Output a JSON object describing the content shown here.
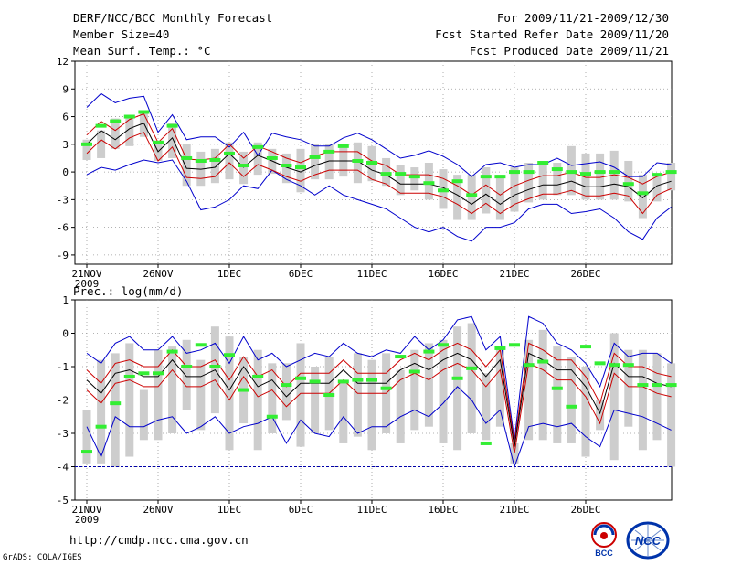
{
  "header": {
    "title": "DERF/NCC/BCC Monthly Forecast",
    "member_size": "Member Size=40",
    "variable": "Mean Surf. Temp.: °C",
    "period": "For 2009/11/21-2009/12/30",
    "fcst_started": "Fcst Started Refer Date 2009/11/20",
    "fcst_produced": "Fcst Produced Date 2009/11/21"
  },
  "footer": {
    "url": "http://cmdp.ncc.cma.gov.cn",
    "credit": "GrADS: COLA/IGES",
    "logo_left": "BCC",
    "logo_right": "NCC"
  },
  "colors": {
    "max_line": "#0000cc",
    "min_line": "#0000cc",
    "upper_line": "#cc0000",
    "lower_line": "#cc0000",
    "mean_line": "#000000",
    "box": "#cdcdcd",
    "marker": "#33ee33",
    "zero_line_precip": "#0000aa"
  },
  "chart_data": [
    {
      "type": "box",
      "title": "Mean Surf. Temp.: °C",
      "xlabel": "",
      "ylabel": "°C",
      "x_first_day": "2009-11-21",
      "x_tick_labels": [
        "21NOV",
        "26NOV",
        "1DEC",
        "6DEC",
        "11DEC",
        "16DEC",
        "21DEC",
        "26DEC"
      ],
      "x_year_label": "2009",
      "ylim": [
        -10,
        12
      ],
      "y_ticks": [
        -9,
        -6,
        -3,
        0,
        3,
        6,
        9,
        12
      ],
      "grid": true,
      "series": [
        {
          "name": "max",
          "values": [
            -0.3,
            0.5,
            0.2,
            0.8,
            1.3,
            1.0,
            1.3,
            -1.0,
            -4.1,
            -3.8,
            -3.0,
            -1.5,
            -1.8,
            0.2,
            -0.8,
            -1.5,
            -2.5,
            -1.5,
            -2.5,
            -3.0,
            -3.5,
            -4.0,
            -5.0,
            -6.0,
            -6.5,
            -6.0,
            -7.0,
            -7.5,
            -6.0,
            -6.0,
            -5.5,
            -4.0,
            -3.5,
            -3.5,
            -4.5,
            -4.3,
            -4.0,
            -5.0,
            -6.5,
            -7.3,
            -5.0,
            -3.8
          ]
        },
        {
          "name": "min",
          "values": [
            7.0,
            8.5,
            7.5,
            8.0,
            8.2,
            4.3,
            6.2,
            3.5,
            3.8,
            3.8,
            2.7,
            4.3,
            1.8,
            4.2,
            3.8,
            3.5,
            2.8,
            2.8,
            3.7,
            4.2,
            3.5,
            2.5,
            1.5,
            1.8,
            2.3,
            1.7,
            0.8,
            -0.5,
            0.8,
            1.0,
            0.5,
            0.8,
            0.8,
            1.5,
            0.7,
            0.9,
            1.1,
            0.5,
            -0.5,
            -0.5,
            1.0,
            0.8
          ]
        },
        {
          "name": "upper",
          "values": [
            4.0,
            5.5,
            4.5,
            5.7,
            6.3,
            3.2,
            4.7,
            1.4,
            1.3,
            1.5,
            3.0,
            1.5,
            2.8,
            2.2,
            1.5,
            1.0,
            1.7,
            2.2,
            2.2,
            2.2,
            1.2,
            0.7,
            -0.3,
            -0.3,
            -0.3,
            -0.7,
            -1.5,
            -2.5,
            -1.4,
            -2.5,
            -1.5,
            -0.9,
            -0.4,
            -0.4,
            0.0,
            -0.6,
            -0.6,
            -0.3,
            -0.6,
            -1.3,
            -0.5,
            0.0
          ]
        },
        {
          "name": "mean",
          "values": [
            3.0,
            4.5,
            3.5,
            4.7,
            5.3,
            2.2,
            3.7,
            0.4,
            0.3,
            0.5,
            2.0,
            0.5,
            1.8,
            1.2,
            0.5,
            0.0,
            0.7,
            1.2,
            1.2,
            1.2,
            0.2,
            -0.3,
            -1.3,
            -1.3,
            -1.3,
            -1.7,
            -2.5,
            -3.5,
            -2.4,
            -3.5,
            -2.5,
            -1.9,
            -1.4,
            -1.4,
            -1.0,
            -1.6,
            -1.6,
            -1.3,
            -1.6,
            -2.8,
            -1.5,
            -1.0
          ]
        },
        {
          "name": "lower",
          "values": [
            2.0,
            3.5,
            2.5,
            3.7,
            4.3,
            1.2,
            2.7,
            -0.6,
            -0.7,
            -0.5,
            1.0,
            -0.5,
            0.8,
            0.2,
            -0.5,
            -1.0,
            -0.3,
            0.2,
            0.2,
            0.2,
            -0.8,
            -1.3,
            -2.3,
            -2.3,
            -2.3,
            -2.7,
            -3.5,
            -4.5,
            -3.4,
            -4.5,
            -3.5,
            -2.9,
            -2.4,
            -2.4,
            -2.0,
            -2.6,
            -2.6,
            -2.3,
            -2.6,
            -4.5,
            -2.5,
            -1.8
          ]
        }
      ],
      "boxes": {
        "low": [
          1.3,
          1.5,
          2.5,
          2.8,
          3.8,
          1.2,
          1.5,
          -1.5,
          -1.5,
          -1.2,
          -0.8,
          -1.3,
          -0.3,
          -0.2,
          -1.2,
          -2.2,
          -0.8,
          -0.8,
          -0.5,
          -1.2,
          -1.0,
          -1.5,
          -2.5,
          -2.0,
          -3.0,
          -4.0,
          -5.2,
          -5.2,
          -4.5,
          -5.2,
          -4.3,
          -3.3,
          -3.0,
          -2.5,
          -2.5,
          -3.0,
          -3.0,
          -3.0,
          -3.2,
          -5.0,
          -3.2,
          -2.0
        ],
        "high": [
          3.5,
          4.5,
          5.8,
          6.2,
          6.3,
          3.3,
          5.3,
          3.0,
          2.2,
          2.5,
          3.2,
          2.2,
          3.2,
          2.5,
          2.0,
          2.5,
          3.0,
          3.0,
          2.8,
          3.2,
          2.8,
          1.5,
          0.8,
          0.5,
          1.0,
          0.3,
          -0.3,
          -0.3,
          0.5,
          -0.3,
          0.5,
          1.0,
          1.0,
          1.0,
          2.8,
          2.0,
          2.0,
          2.3,
          1.2,
          -0.3,
          -0.5,
          1.0
        ],
        "marker": [
          3.0,
          5.0,
          5.5,
          6.0,
          6.5,
          3.2,
          5.0,
          1.5,
          1.2,
          1.3,
          2.0,
          0.7,
          2.7,
          1.5,
          0.7,
          0.5,
          1.6,
          2.2,
          2.8,
          1.2,
          1.0,
          -0.2,
          -0.2,
          -0.5,
          -1.2,
          -2.0,
          -1.0,
          -2.5,
          -0.5,
          -0.5,
          0.0,
          0.0,
          1.0,
          0.3,
          0.0,
          -0.2,
          0.0,
          0.0,
          -1.3,
          -2.3,
          -0.3,
          0.0
        ]
      }
    },
    {
      "type": "box",
      "title": "Prec.: log(mm/d)",
      "xlabel": "",
      "ylabel": "log(mm/d)",
      "x_first_day": "2009-11-21",
      "x_tick_labels": [
        "21NOV",
        "26NOV",
        "1DEC",
        "6DEC",
        "11DEC",
        "16DEC",
        "21DEC",
        "26DEC"
      ],
      "x_year_label": "2009",
      "ylim": [
        -5,
        1
      ],
      "y_ticks": [
        -5,
        -4,
        -3,
        -2,
        -1,
        0,
        1
      ],
      "grid": true,
      "reference_line": -4,
      "series": [
        {
          "name": "max",
          "values": [
            -0.6,
            -0.9,
            -0.3,
            -0.1,
            -0.5,
            -0.5,
            -0.1,
            -0.6,
            -0.5,
            -0.3,
            -0.9,
            -0.1,
            -0.8,
            -0.6,
            -1.0,
            -0.8,
            -0.6,
            -0.7,
            -0.3,
            -0.6,
            -0.7,
            -0.5,
            -0.6,
            -0.1,
            -0.5,
            -0.2,
            0.4,
            0.5,
            -0.5,
            -0.1,
            -3.2,
            0.5,
            0.3,
            -0.3,
            -0.5,
            -0.9,
            -1.6,
            -0.3,
            -0.7,
            -0.6,
            -0.6,
            -0.9
          ]
        },
        {
          "name": "upper",
          "values": [
            -1.1,
            -1.5,
            -0.9,
            -0.8,
            -1.0,
            -1.0,
            -0.5,
            -1.0,
            -1.0,
            -0.8,
            -1.4,
            -0.7,
            -1.3,
            -1.1,
            -1.6,
            -1.2,
            -1.2,
            -1.2,
            -0.8,
            -1.2,
            -1.2,
            -1.2,
            -0.8,
            -0.6,
            -0.8,
            -0.5,
            -0.3,
            -0.5,
            -1.0,
            -0.5,
            -3.3,
            -0.3,
            -0.5,
            -0.8,
            -0.8,
            -1.3,
            -2.1,
            -0.6,
            -1.0,
            -1.0,
            -1.2,
            -1.3
          ]
        },
        {
          "name": "mean",
          "values": [
            -1.4,
            -1.8,
            -1.2,
            -1.1,
            -1.3,
            -1.3,
            -0.8,
            -1.3,
            -1.3,
            -1.1,
            -1.7,
            -1.0,
            -1.6,
            -1.4,
            -1.9,
            -1.5,
            -1.5,
            -1.5,
            -1.1,
            -1.5,
            -1.5,
            -1.5,
            -1.1,
            -0.9,
            -1.1,
            -0.8,
            -0.6,
            -0.8,
            -1.3,
            -0.8,
            -3.4,
            -0.6,
            -0.8,
            -1.1,
            -1.1,
            -1.6,
            -2.4,
            -0.9,
            -1.3,
            -1.3,
            -1.5,
            -1.6
          ]
        },
        {
          "name": "lower",
          "values": [
            -1.7,
            -2.1,
            -1.5,
            -1.4,
            -1.6,
            -1.6,
            -1.1,
            -1.6,
            -1.6,
            -1.4,
            -2.0,
            -1.3,
            -1.9,
            -1.7,
            -2.2,
            -1.8,
            -1.8,
            -1.8,
            -1.4,
            -1.8,
            -1.8,
            -1.8,
            -1.4,
            -1.2,
            -1.4,
            -1.1,
            -0.9,
            -1.1,
            -1.6,
            -1.1,
            -3.6,
            -0.9,
            -1.1,
            -1.4,
            -1.4,
            -1.9,
            -2.7,
            -1.2,
            -1.6,
            -1.6,
            -1.8,
            -1.9
          ]
        },
        {
          "name": "min",
          "values": [
            -2.8,
            -3.7,
            -2.5,
            -2.8,
            -2.8,
            -2.6,
            -2.5,
            -3.0,
            -2.8,
            -2.5,
            -3.0,
            -2.8,
            -2.7,
            -2.5,
            -3.3,
            -2.6,
            -3.0,
            -3.1,
            -2.5,
            -3.0,
            -2.8,
            -2.8,
            -2.5,
            -2.3,
            -2.5,
            -2.1,
            -1.6,
            -2.0,
            -2.7,
            -2.3,
            -4.0,
            -2.8,
            -2.7,
            -2.8,
            -2.7,
            -3.1,
            -3.4,
            -2.3,
            -2.4,
            -2.5,
            -2.7,
            -2.9
          ]
        }
      ],
      "boxes": {
        "low": [
          -3.9,
          -3.9,
          -4.0,
          -3.7,
          -3.2,
          -3.2,
          -3.0,
          -2.3,
          -2.9,
          -2.4,
          -3.5,
          -2.7,
          -3.5,
          -3.0,
          -2.6,
          -3.4,
          -3.0,
          -2.9,
          -3.3,
          -3.1,
          -3.5,
          -3.0,
          -3.3,
          -2.9,
          -2.8,
          -3.3,
          -3.5,
          -3.0,
          -3.2,
          -2.8,
          -3.9,
          -3.2,
          -3.2,
          -3.3,
          -3.3,
          -3.7,
          -2.9,
          -3.8,
          -2.8,
          -3.5,
          -3.2,
          -4.0
        ],
        "high": [
          -2.3,
          -0.8,
          -0.6,
          -0.3,
          -1.7,
          -0.5,
          -0.4,
          -0.2,
          -0.8,
          0.2,
          -0.1,
          -0.7,
          -0.5,
          -0.9,
          -0.9,
          -0.3,
          -1.0,
          -0.7,
          -1.4,
          -0.6,
          -0.8,
          -0.6,
          -1.1,
          -0.5,
          -0.3,
          -0.2,
          0.2,
          0.3,
          -1.2,
          -0.4,
          -3.3,
          -0.2,
          0.1,
          -0.4,
          -0.7,
          -1.0,
          -2.0,
          0.0,
          -0.5,
          -0.5,
          -0.6,
          -0.9
        ]
      },
      "markers": [
        -3.55,
        -2.8,
        -2.1,
        -1.3,
        -1.2,
        -1.2,
        -0.55,
        -1.0,
        -0.35,
        -1.0,
        -0.65,
        -1.7,
        -1.3,
        -2.5,
        -1.55,
        -1.35,
        -1.45,
        -1.85,
        -1.45,
        -1.4,
        -1.4,
        -1.65,
        -0.7,
        -1.15,
        -0.55,
        -0.35,
        -1.35,
        -1.05,
        -3.3,
        -0.45,
        -0.35,
        -0.95,
        -0.85,
        -1.65,
        -2.2,
        -0.4,
        -0.9,
        -0.95,
        -0.95,
        -1.55,
        -1.55,
        -1.55
      ]
    }
  ]
}
